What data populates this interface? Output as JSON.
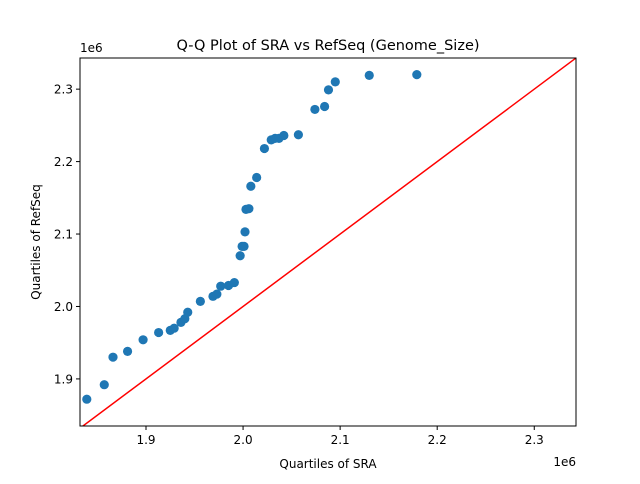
{
  "chart_data": {
    "type": "scatter",
    "title": "Q-Q Plot of SRA vs RefSeq (Genome_Size)",
    "xlabel": "Quartiles of SRA",
    "ylabel": "Quartiles of RefSeq",
    "x_offset_label": "1e6",
    "y_offset_label": "1e6",
    "xlim": [
      1.832,
      2.343
    ],
    "ylim": [
      1.835,
      2.343
    ],
    "xticks": [
      1.9,
      2.0,
      2.1,
      2.2,
      2.3
    ],
    "yticks": [
      1.9,
      2.0,
      2.1,
      2.2,
      2.3
    ],
    "xtick_labels": [
      "1.9",
      "2.0",
      "2.1",
      "2.2",
      "2.3"
    ],
    "ytick_labels": [
      "1.9",
      "2.0",
      "2.1",
      "2.2",
      "2.3"
    ],
    "grid": false,
    "point_color": "#1f77b4",
    "reference_line": {
      "type": "y=x",
      "color": "#ff0000"
    },
    "points": [
      [
        1.839,
        1.872
      ],
      [
        1.857,
        1.892
      ],
      [
        1.866,
        1.93
      ],
      [
        1.881,
        1.938
      ],
      [
        1.897,
        1.954
      ],
      [
        1.913,
        1.964
      ],
      [
        1.925,
        1.967
      ],
      [
        1.929,
        1.97
      ],
      [
        1.936,
        1.978
      ],
      [
        1.94,
        1.983
      ],
      [
        1.943,
        1.992
      ],
      [
        1.956,
        2.007
      ],
      [
        1.969,
        2.014
      ],
      [
        1.973,
        2.017
      ],
      [
        1.977,
        2.028
      ],
      [
        1.985,
        2.029
      ],
      [
        1.991,
        2.033
      ],
      [
        1.997,
        2.07
      ],
      [
        1.999,
        2.083
      ],
      [
        2.001,
        2.083
      ],
      [
        2.002,
        2.103
      ],
      [
        2.003,
        2.134
      ],
      [
        2.006,
        2.135
      ],
      [
        2.008,
        2.166
      ],
      [
        2.014,
        2.178
      ],
      [
        2.022,
        2.218
      ],
      [
        2.029,
        2.23
      ],
      [
        2.033,
        2.232
      ],
      [
        2.037,
        2.232
      ],
      [
        2.042,
        2.236
      ],
      [
        2.057,
        2.237
      ],
      [
        2.074,
        2.272
      ],
      [
        2.084,
        2.276
      ],
      [
        2.088,
        2.299
      ],
      [
        2.095,
        2.31
      ],
      [
        2.13,
        2.319
      ],
      [
        2.179,
        2.32
      ]
    ]
  }
}
